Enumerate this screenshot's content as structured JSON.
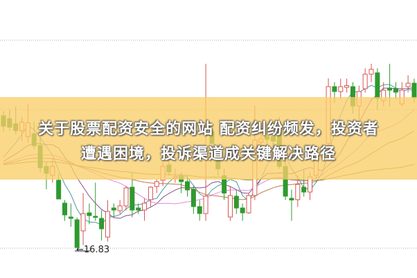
{
  "banner": {
    "line1": "关于股票配资安全的网站 配资纠纷频发，投资者",
    "line2": "遭遇困境，投诉渠道成关键解决路径"
  },
  "chart_data": {
    "type": "candlestick",
    "title": "",
    "grid": true,
    "annotation": {
      "label": "←16.83",
      "value": 16.83,
      "meaning": "period low"
    },
    "colors": {
      "up": "#d9534f",
      "down": "#2e9a2e",
      "banner": "#facb69"
    },
    "moving_averages": [
      {
        "period": 5,
        "color": "#4a9aa0"
      },
      {
        "period": 10,
        "color": "#8a4f8a"
      },
      {
        "period": 20,
        "color": "#e08ae0"
      },
      {
        "period": 30,
        "color": "#c0784a"
      },
      {
        "period": 60,
        "color": "#8a8a3a"
      }
    ],
    "ohlc_fields": [
      "open",
      "high",
      "low",
      "close"
    ],
    "candles": [
      [
        20.63,
        20.77,
        20.17,
        20.33
      ],
      [
        20.55,
        20.8,
        20.2,
        20.3
      ],
      [
        20.4,
        20.9,
        20.1,
        20.2
      ],
      [
        20.2,
        20.6,
        19.9,
        20.45
      ],
      [
        20.03,
        20.97,
        19.85,
        20.43
      ],
      [
        20.11,
        20.47,
        19.67,
        19.77
      ],
      [
        19.77,
        20.0,
        19.0,
        19.13
      ],
      [
        19.17,
        19.3,
        18.51,
        18.97
      ],
      [
        18.91,
        19.4,
        18.7,
        19.17
      ],
      [
        18.77,
        18.97,
        18.23,
        18.23
      ],
      [
        18.11,
        18.2,
        17.6,
        17.77
      ],
      [
        17.71,
        18.1,
        17.43,
        17.67
      ],
      [
        17.63,
        17.7,
        16.83,
        16.83
      ],
      [
        17.31,
        18.4,
        16.9,
        17.81
      ],
      [
        17.83,
        18.1,
        17.5,
        17.75
      ],
      [
        17.73,
        18.7,
        17.6,
        17.71
      ],
      [
        17.67,
        17.9,
        17.03,
        17.37
      ],
      [
        17.13,
        18.2,
        17.0,
        17.87
      ],
      [
        17.97,
        18.1,
        17.7,
        17.91
      ],
      [
        17.89,
        18.2,
        17.8,
        18.03
      ],
      [
        18.03,
        18.6,
        17.9,
        18.55
      ],
      [
        18.57,
        19.0,
        17.7,
        17.91
      ],
      [
        17.97,
        18.1,
        17.8,
        17.91
      ],
      [
        17.91,
        18.25,
        17.6,
        18.11
      ],
      [
        18.21,
        18.6,
        18.0,
        18.57
      ],
      [
        18.59,
        18.8,
        18.4,
        18.73
      ],
      [
        18.77,
        19.3,
        18.6,
        19.17
      ],
      [
        19.21,
        19.4,
        18.9,
        19.01
      ],
      [
        18.83,
        19.1,
        18.7,
        18.87
      ],
      [
        18.87,
        19.0,
        18.4,
        18.73
      ],
      [
        18.73,
        18.9,
        18.3,
        18.49
      ],
      [
        18.51,
        18.6,
        17.8,
        18.01
      ],
      [
        18.01,
        18.2,
        17.6,
        17.81
      ],
      [
        17.81,
        22.13,
        17.6,
        18.31
      ],
      [
        20.17,
        20.4,
        19.6,
        19.83
      ],
      [
        19.5,
        19.8,
        18.9,
        19.1
      ],
      [
        18.9,
        19.1,
        18.2,
        18.4
      ],
      [
        17.71,
        18.6,
        17.6,
        18.33
      ],
      [
        18.31,
        18.5,
        17.8,
        17.97
      ],
      [
        17.97,
        18.1,
        17.6,
        17.83
      ],
      [
        17.83,
        18.4,
        17.8,
        18.33
      ],
      [
        18.33,
        20.93,
        18.2,
        19.93
      ],
      [
        19.87,
        20.3,
        19.3,
        19.97
      ],
      [
        20.03,
        20.3,
        19.6,
        19.95
      ],
      [
        20.03,
        20.3,
        19.5,
        19.9
      ],
      [
        20.31,
        20.6,
        19.1,
        19.17
      ],
      [
        19.17,
        19.5,
        18.2,
        18.31
      ],
      [
        18.25,
        18.5,
        17.6,
        18.2
      ],
      [
        18.21,
        18.9,
        18.0,
        18.65
      ],
      [
        18.57,
        19.1,
        18.3,
        18.43
      ],
      [
        18.43,
        19.0,
        18.2,
        18.87
      ],
      [
        18.91,
        19.5,
        18.8,
        19.37
      ],
      [
        19.45,
        19.8,
        19.3,
        19.6
      ],
      [
        19.83,
        21.71,
        19.6,
        21.47
      ],
      [
        21.47,
        21.6,
        21.0,
        21.33
      ],
      [
        21.33,
        21.7,
        21.1,
        21.47
      ],
      [
        21.45,
        21.7,
        21.3,
        21.5
      ],
      [
        21.47,
        21.6,
        20.7,
        20.91
      ],
      [
        20.91,
        21.5,
        20.5,
        21.33
      ],
      [
        21.41,
        22.0,
        21.3,
        21.83
      ],
      [
        21.83,
        22.13,
        21.6,
        21.97
      ],
      [
        21.87,
        22.0,
        20.8,
        21.13
      ],
      [
        21.07,
        21.6,
        20.9,
        21.37
      ],
      [
        21.43,
        22.13,
        20.9,
        21.37
      ],
      [
        21.41,
        21.6,
        21.1,
        21.31
      ],
      [
        20.97,
        21.6,
        20.9,
        21.37
      ],
      [
        21.47,
        21.8,
        21.3,
        21.57
      ],
      [
        21.57,
        21.7,
        21.0,
        21.15
      ]
    ]
  }
}
